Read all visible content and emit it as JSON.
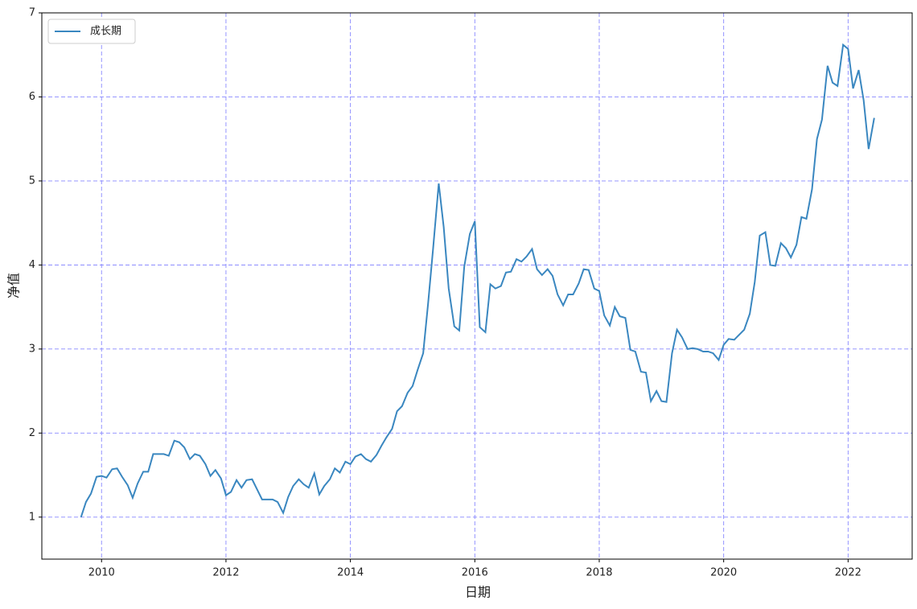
{
  "chart_data": {
    "type": "line",
    "x_label": "日期",
    "y_label": "净值",
    "x": [
      2009.67,
      2009.75,
      2009.83,
      2009.92,
      2010.0,
      2010.08,
      2010.17,
      2010.25,
      2010.33,
      2010.42,
      2010.5,
      2010.58,
      2010.67,
      2010.75,
      2010.83,
      2010.92,
      2011.0,
      2011.08,
      2011.17,
      2011.25,
      2011.33,
      2011.42,
      2011.5,
      2011.58,
      2011.67,
      2011.75,
      2011.83,
      2011.92,
      2012.0,
      2012.08,
      2012.17,
      2012.25,
      2012.33,
      2012.42,
      2012.5,
      2012.58,
      2012.67,
      2012.75,
      2012.83,
      2012.92,
      2013.0,
      2013.08,
      2013.17,
      2013.25,
      2013.33,
      2013.42,
      2013.5,
      2013.58,
      2013.67,
      2013.75,
      2013.83,
      2013.92,
      2014.0,
      2014.08,
      2014.17,
      2014.25,
      2014.33,
      2014.42,
      2014.5,
      2014.58,
      2014.67,
      2014.75,
      2014.83,
      2014.92,
      2015.0,
      2015.08,
      2015.17,
      2015.25,
      2015.33,
      2015.42,
      2015.5,
      2015.58,
      2015.67,
      2015.75,
      2015.83,
      2015.92,
      2016.0,
      2016.08,
      2016.17,
      2016.25,
      2016.33,
      2016.42,
      2016.5,
      2016.58,
      2016.67,
      2016.75,
      2016.83,
      2016.92,
      2017.0,
      2017.08,
      2017.17,
      2017.25,
      2017.33,
      2017.42,
      2017.5,
      2017.58,
      2017.67,
      2017.75,
      2017.83,
      2017.92,
      2018.0,
      2018.08,
      2018.17,
      2018.25,
      2018.33,
      2018.42,
      2018.5,
      2018.58,
      2018.67,
      2018.75,
      2018.83,
      2018.92,
      2019.0,
      2019.08,
      2019.17,
      2019.25,
      2019.33,
      2019.42,
      2019.5,
      2019.58,
      2019.67,
      2019.75,
      2019.83,
      2019.92,
      2020.0,
      2020.08,
      2020.17,
      2020.25,
      2020.33,
      2020.42,
      2020.5,
      2020.58,
      2020.67,
      2020.75,
      2020.83,
      2020.92,
      2021.0,
      2021.08,
      2021.17,
      2021.25,
      2021.33,
      2021.42,
      2021.5,
      2021.58,
      2021.67,
      2021.75,
      2021.83,
      2021.92,
      2022.0,
      2022.08,
      2022.17,
      2022.25,
      2022.33,
      2022.42
    ],
    "series": [
      {
        "name": "成长期",
        "color": "#3a87c0",
        "values": [
          1.0,
          1.18,
          1.28,
          1.48,
          1.49,
          1.47,
          1.57,
          1.58,
          1.48,
          1.38,
          1.23,
          1.4,
          1.54,
          1.54,
          1.75,
          1.75,
          1.75,
          1.73,
          1.91,
          1.89,
          1.83,
          1.69,
          1.75,
          1.73,
          1.63,
          1.49,
          1.56,
          1.46,
          1.26,
          1.3,
          1.44,
          1.35,
          1.44,
          1.45,
          1.33,
          1.21,
          1.21,
          1.21,
          1.18,
          1.05,
          1.24,
          1.37,
          1.45,
          1.39,
          1.35,
          1.52,
          1.27,
          1.37,
          1.45,
          1.58,
          1.53,
          1.66,
          1.63,
          1.72,
          1.75,
          1.69,
          1.66,
          1.74,
          1.85,
          1.95,
          2.05,
          2.26,
          2.32,
          2.48,
          2.56,
          2.75,
          2.95,
          3.55,
          4.2,
          4.97,
          4.45,
          3.72,
          3.27,
          3.22,
          3.98,
          4.37,
          4.52,
          3.26,
          3.2,
          3.77,
          3.72,
          3.75,
          3.91,
          3.92,
          4.07,
          4.04,
          4.1,
          4.19,
          3.95,
          3.88,
          3.95,
          3.87,
          3.65,
          3.52,
          3.65,
          3.65,
          3.78,
          3.95,
          3.94,
          3.72,
          3.69,
          3.4,
          3.28,
          3.5,
          3.39,
          3.37,
          2.99,
          2.97,
          2.73,
          2.72,
          2.38,
          2.5,
          2.38,
          2.37,
          2.95,
          3.23,
          3.14,
          3.0,
          3.01,
          3.0,
          2.97,
          2.97,
          2.95,
          2.87,
          3.05,
          3.12,
          3.11,
          3.17,
          3.23,
          3.42,
          3.8,
          4.35,
          4.39,
          4.0,
          3.99,
          4.26,
          4.2,
          4.09,
          4.24,
          4.57,
          4.55,
          4.9,
          5.5,
          5.73,
          6.37,
          6.17,
          6.13,
          6.62,
          6.57,
          6.1,
          6.32,
          5.96,
          5.38,
          5.75
        ]
      }
    ],
    "xlim": [
      2009.04,
      2023.03
    ],
    "xticks": [
      2010,
      2012,
      2014,
      2016,
      2018,
      2020,
      2022
    ],
    "ylim": [
      0.5,
      7
    ],
    "yticks": [
      1,
      2,
      3,
      4,
      5,
      6,
      7
    ],
    "grid": true,
    "grid_color": "#8888ff",
    "legend": "upper-left"
  }
}
